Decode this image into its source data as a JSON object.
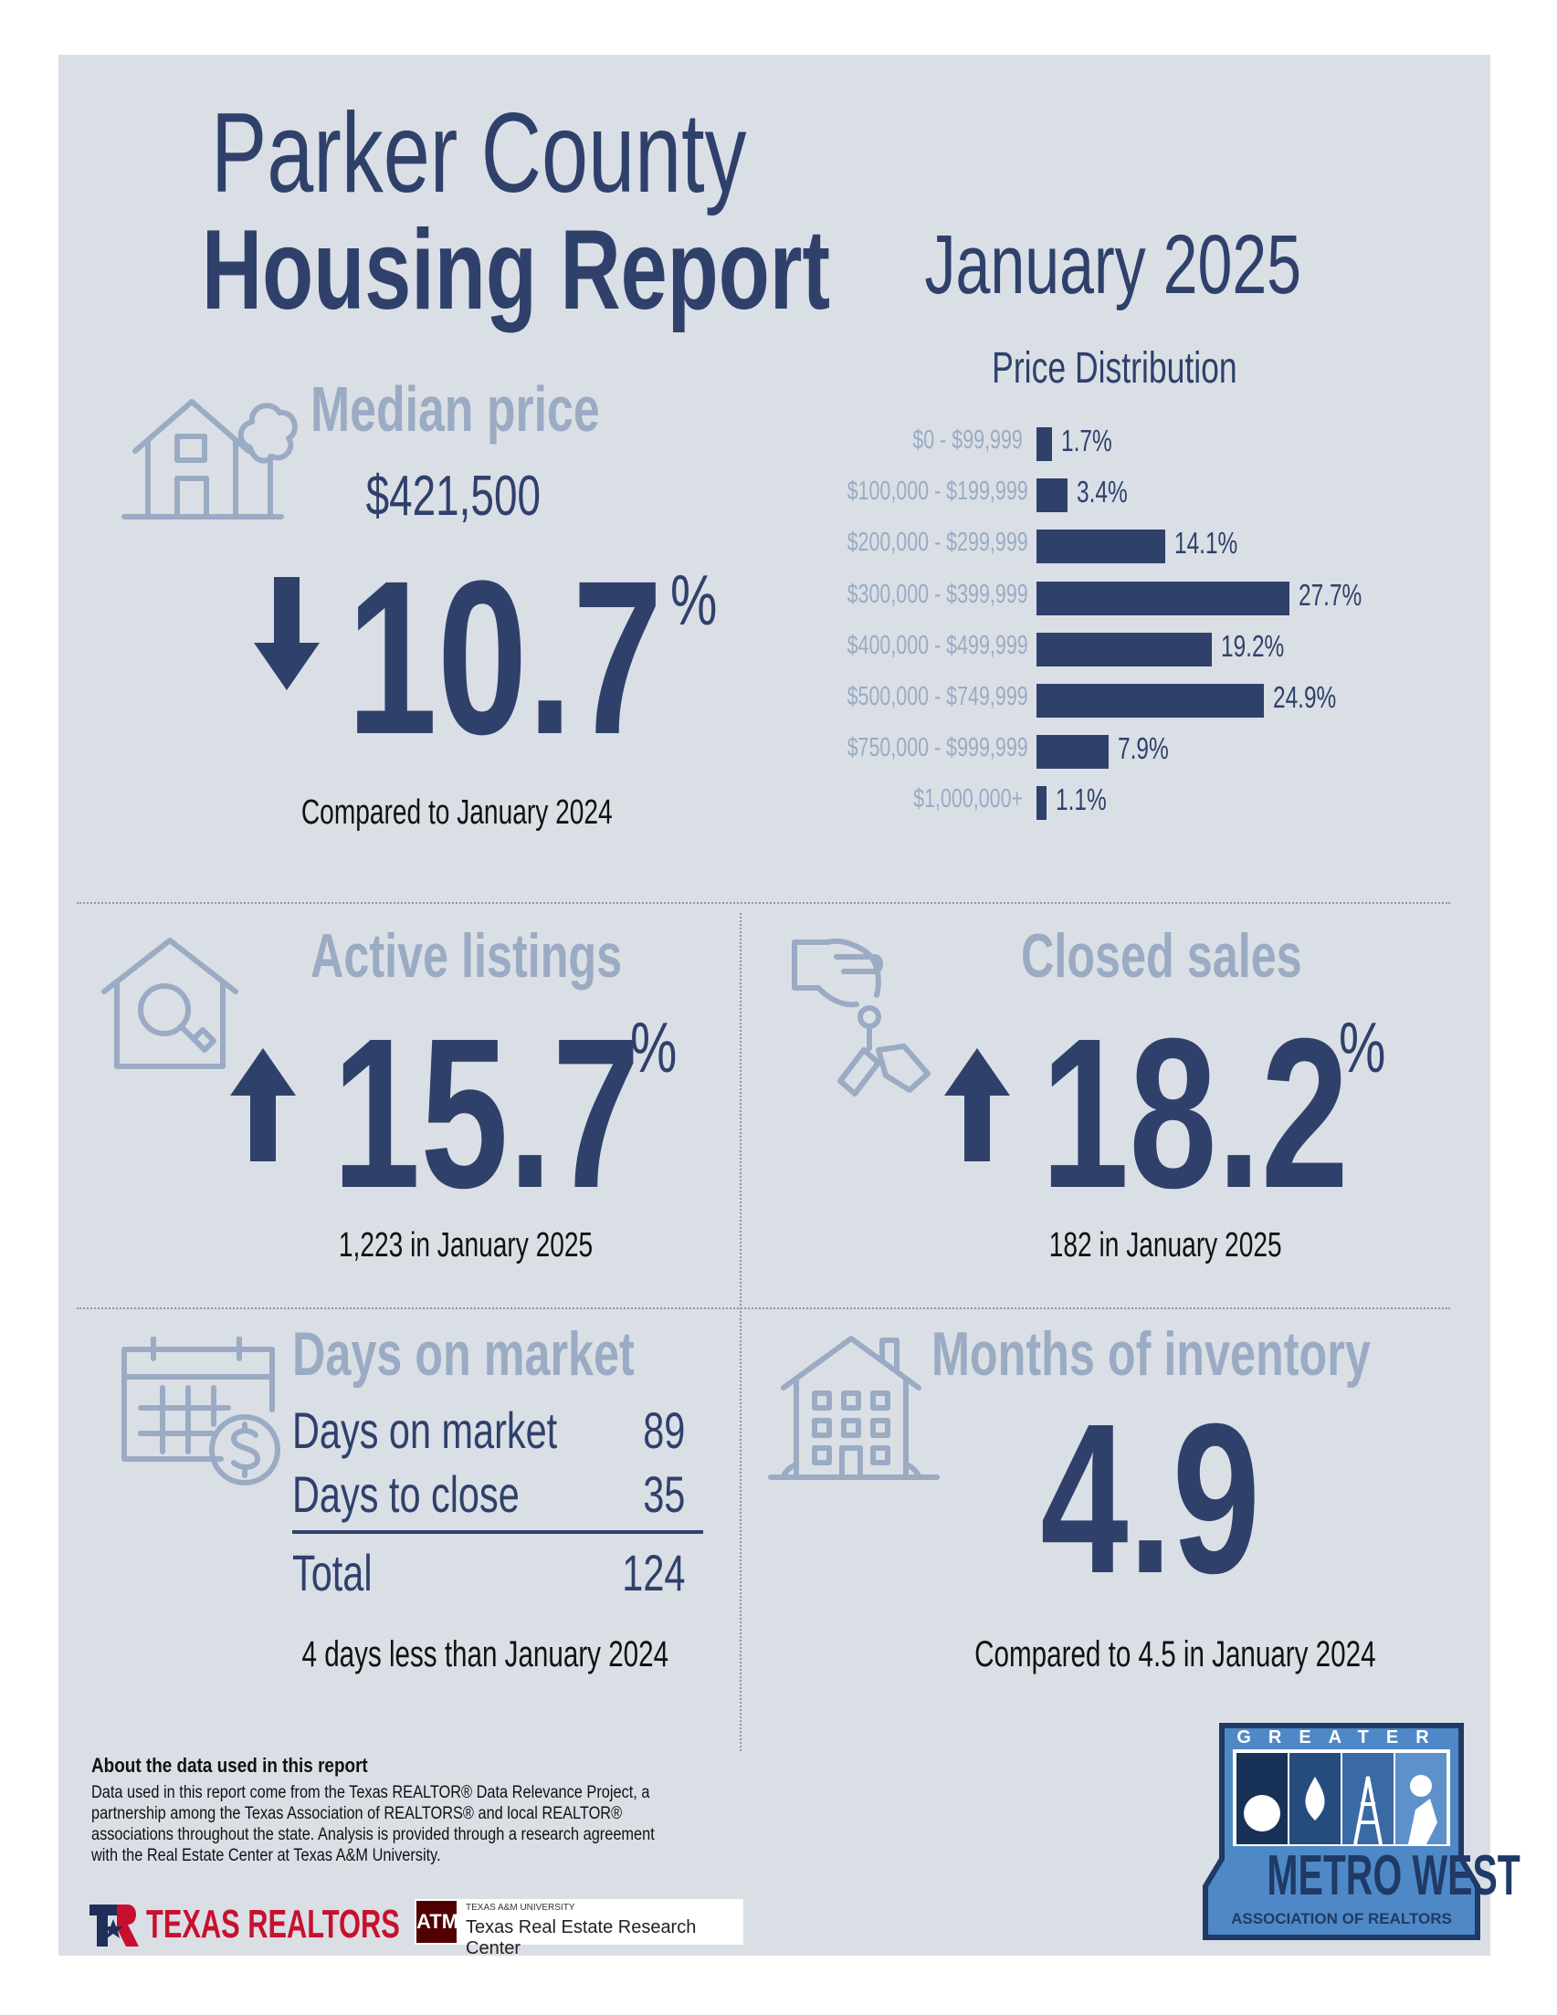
{
  "header": {
    "title_line1": "Parker County",
    "title_line2": "Housing Report",
    "period": "January 2025"
  },
  "median_price": {
    "label": "Median price",
    "value": "$421,500",
    "change": "10.7",
    "unit": "%",
    "direction": "down",
    "comparison": "Compared to January 2024",
    "icon": "house-tree-icon"
  },
  "price_distribution": {
    "title": "Price Distribution",
    "chart_data": {
      "type": "bar",
      "orientation": "horizontal",
      "title": "Price Distribution",
      "categories": [
        "$0 - $99,999",
        "$100,000 - $199,999",
        "$200,000 - $299,999",
        "$300,000 - $399,999",
        "$400,000 - $499,999",
        "$500,000 - $749,999",
        "$750,000 - $999,999",
        "$1,000,000+"
      ],
      "values": [
        1.7,
        3.4,
        14.1,
        27.7,
        19.2,
        24.9,
        7.9,
        1.1
      ],
      "value_labels": [
        "1.7%",
        "3.4%",
        "14.1%",
        "27.7%",
        "19.2%",
        "24.9%",
        "7.9%",
        "1.1%"
      ],
      "unit": "%",
      "color": "#2f416b"
    }
  },
  "active_listings": {
    "label": "Active listings",
    "change": "15.7",
    "unit": "%",
    "direction": "up",
    "detail": "1,223 in January 2025",
    "icon": "house-magnifier-icon"
  },
  "closed_sales": {
    "label": "Closed sales",
    "change": "18.2",
    "unit": "%",
    "direction": "up",
    "detail": "182 in January 2025",
    "icon": "hand-keys-icon"
  },
  "days_on_market": {
    "label": "Days on market",
    "rows": [
      {
        "label": "Days on market",
        "value": "89"
      },
      {
        "label": "Days to close",
        "value": "35"
      }
    ],
    "total_label": "Total",
    "total_value": "124",
    "comparison": "4 days less than January 2024",
    "icon": "calendar-dollar-icon"
  },
  "months_inventory": {
    "label": "Months of inventory",
    "value": "4.9",
    "comparison": "Compared to 4.5 in January 2024",
    "icon": "building-icon"
  },
  "about": {
    "heading": "About the data used in this report",
    "lines": [
      "Data used in this report come from the Texas REALTOR® Data Relevance Project, a",
      "partnership among the Texas Association of REALTORS® and local REALTOR®",
      "associations throughout the state. Analysis is provided through a research agreement",
      "with the Real Estate Center at Texas A&M University."
    ]
  },
  "logos": {
    "texas_realtors": "TEXAS REALTORS",
    "tamu_small": "TEXAS A&M UNIVERSITY",
    "tamu_center": "Texas Real Estate Research Center",
    "gmw_top": "GREATER",
    "gmw_main": "METRO WEST",
    "gmw_sub": "ASSOCIATION OF REALTORS"
  },
  "colors": {
    "background": "#dadfe6",
    "navy": "#2f416b",
    "steel": "#9aabc3",
    "brand_red": "#c8102e",
    "maroon": "#500000"
  }
}
